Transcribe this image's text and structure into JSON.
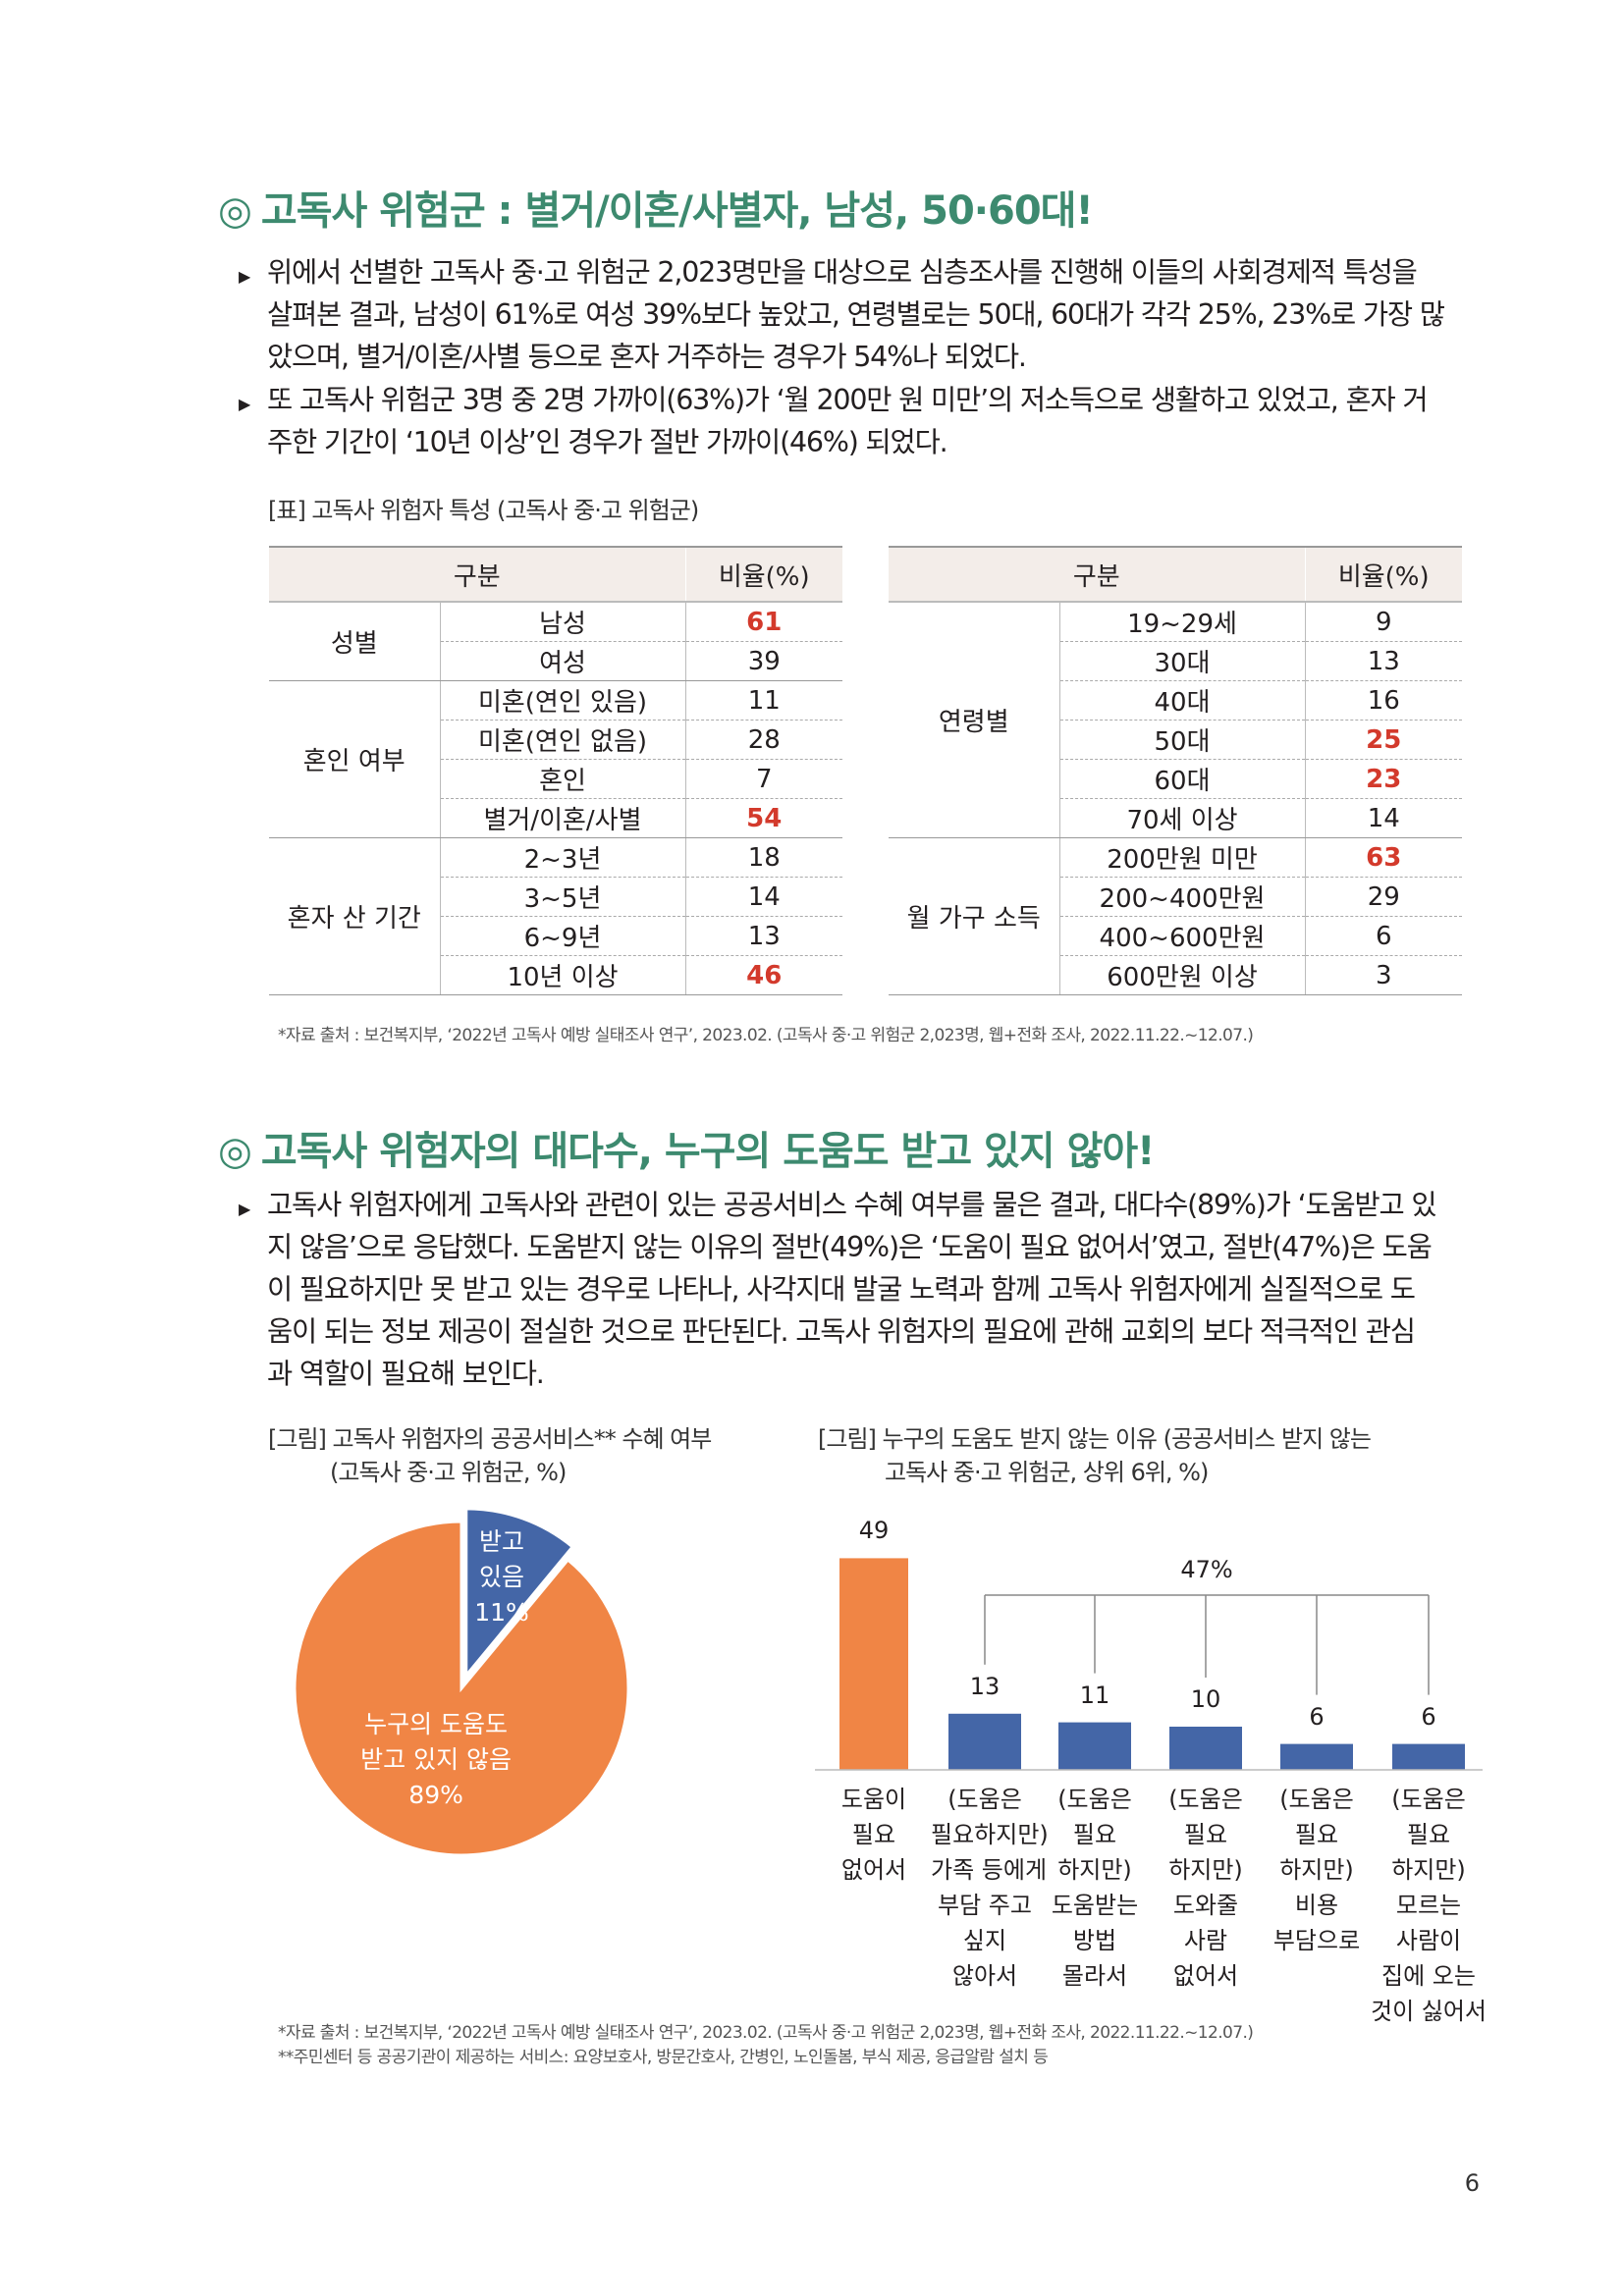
{
  "section1": {
    "title_mark": "◎",
    "title": "고독사 위험군 : 별거/이혼/사별자, 남성, 50·60대!",
    "bullets": [
      {
        "lines": [
          "위에서 선별한 고독사 중·고 위험군 2,023명만을 대상으로 심층조사를 진행해 이들의 사회경제적 특성을",
          "살펴본 결과, 남성이 61%로 여성 39%보다 높았고, 연령별로는 50대, 60대가 각각 25%, 23%로 가장 많",
          "았으며, 별거/이혼/사별 등으로 혼자 거주하는 경우가 54%나 되었다."
        ]
      },
      {
        "lines": [
          "또 고독사 위험군 3명 중 2명 가까이(63%)가 ‘월 200만 원 미만’의 저소득으로 생활하고 있었고, 혼자 거",
          "주한 기간이 ‘10년 이상’인 경우가 절반 가까이(46%) 되었다."
        ]
      }
    ],
    "table_caption": "[표] 고독사 위험자 특성 (고독사 중·고 위험군)",
    "table_left": {
      "headers": [
        "구분",
        "비율(%)"
      ],
      "groups": [
        {
          "name": "성별",
          "rows": [
            {
              "label": "남성",
              "value": "61",
              "hi": true
            },
            {
              "label": "여성",
              "value": "39",
              "hi": false
            }
          ]
        },
        {
          "name": "혼인 여부",
          "rows": [
            {
              "label": "미혼(연인 있음)",
              "value": "11",
              "hi": false
            },
            {
              "label": "미혼(연인 없음)",
              "value": "28",
              "hi": false
            },
            {
              "label": "혼인",
              "value": "7",
              "hi": false
            },
            {
              "label": "별거/이혼/사별",
              "value": "54",
              "hi": true
            }
          ]
        },
        {
          "name": "혼자 산 기간",
          "rows": [
            {
              "label": "2~3년",
              "value": "18",
              "hi": false
            },
            {
              "label": "3~5년",
              "value": "14",
              "hi": false
            },
            {
              "label": "6~9년",
              "value": "13",
              "hi": false
            },
            {
              "label": "10년 이상",
              "value": "46",
              "hi": true
            }
          ]
        }
      ]
    },
    "table_right": {
      "headers": [
        "구분",
        "비율(%)"
      ],
      "groups": [
        {
          "name": "연령별",
          "rows": [
            {
              "label": "19~29세",
              "value": "9",
              "hi": false
            },
            {
              "label": "30대",
              "value": "13",
              "hi": false
            },
            {
              "label": "40대",
              "value": "16",
              "hi": false
            },
            {
              "label": "50대",
              "value": "25",
              "hi": true
            },
            {
              "label": "60대",
              "value": "23",
              "hi": true
            },
            {
              "label": "70세 이상",
              "value": "14",
              "hi": false
            }
          ]
        },
        {
          "name": "월 가구 소득",
          "rows": [
            {
              "label": "200만원 미만",
              "value": "63",
              "hi": true
            },
            {
              "label": "200~400만원",
              "value": "29",
              "hi": false
            },
            {
              "label": "400~600만원",
              "value": "6",
              "hi": false
            },
            {
              "label": "600만원 이상",
              "value": "3",
              "hi": false
            }
          ]
        }
      ]
    },
    "source": "*자료 출처 : 보건복지부, ‘2022년 고독사 예방 실태조사 연구’, 2023.02. (고독사 중·고 위험군 2,023명, 웹+전화 조사, 2022.11.22.~12.07.)"
  },
  "section2": {
    "title_mark": "◎",
    "title": "고독사 위험자의 대다수, 누구의 도움도 받고 있지 않아!",
    "bullet_lines": [
      "고독사 위험자에게 고독사와 관련이 있는 공공서비스 수혜 여부를 물은 결과, 대다수(89%)가 ‘도움받고 있",
      "지 않음’으로 응답했다. 도움받지 않는 이유의 절반(49%)은 ‘도움이 필요 없어서’였고, 절반(47%)은 도움",
      "이 필요하지만 못 받고 있는 경우로 나타나, 사각지대 발굴 노력과 함께 고독사 위험자에게 실질적으로 도",
      "움이 되는 정보 제공이 절실한 것으로 판단된다. 고독사 위험자의 필요에 관해 교회의 보다 적극적인 관심",
      "과 역할이 필요해 보인다."
    ],
    "pie_caption_line1": "[그림] 고독사 위험자의 공공서비스** 수혜 여부",
    "pie_caption_line2": "(고독사 중·고 위험군, %)",
    "bar_caption_line1": "[그림] 누구의 도움도 받지 않는 이유 (공공서비스 받지 않는",
    "bar_caption_line2": "고독사 중·고 위험군, 상위 6위, %)",
    "source1": "*자료 출처 : 보건복지부, ‘2022년 고독사 예방 실태조사 연구’, 2023.02. (고독사 중·고 위험군 2,023명, 웹+전화 조사, 2022.11.22.~12.07.)",
    "source2": "**주민센터 등 공공기관이 제공하는 서비스: 요양보호사, 방문간호사, 간병인, 노인돌봄, 부식 제공, 응급알람 설치 등"
  },
  "page_number": "6",
  "colors": {
    "accent": "#3d8a6f",
    "orange": "#f08545",
    "blue": "#4466a7",
    "highlight": "#d33a2c"
  },
  "chart_data": [
    {
      "type": "pie",
      "slices": [
        {
          "label_lines": [
            "받고",
            "있음",
            "11%"
          ],
          "value": 11,
          "color": "#4466a7"
        },
        {
          "label_lines": [
            "누구의 도움도",
            "받고 있지 않음",
            "89%"
          ],
          "value": 89,
          "color": "#f08545"
        }
      ]
    },
    {
      "type": "bar",
      "categories": [
        [
          "도움이",
          "필요",
          "없어서"
        ],
        [
          "(도움은",
          "필요하지만)",
          "가족 등에게",
          "부담 주고",
          "싶지",
          "않아서"
        ],
        [
          "(도움은",
          "필요",
          "하지만)",
          "도움받는",
          "방법",
          "몰라서"
        ],
        [
          "(도움은",
          "필요",
          "하지만)",
          "도와줄",
          "사람",
          "없어서"
        ],
        [
          "(도움은",
          "필요",
          "하지만)",
          "비용",
          "부담으로"
        ],
        [
          "(도움은",
          "필요",
          "하지만)",
          "모르는",
          "사람이",
          "집에 오는",
          "것이 싫어서"
        ]
      ],
      "values": [
        49,
        13,
        11,
        10,
        6,
        6
      ],
      "colors": [
        "#f08545",
        "#4466a7",
        "#4466a7",
        "#4466a7",
        "#4466a7",
        "#4466a7"
      ],
      "bracket_label": "47%",
      "ylim": [
        0,
        50
      ]
    }
  ]
}
